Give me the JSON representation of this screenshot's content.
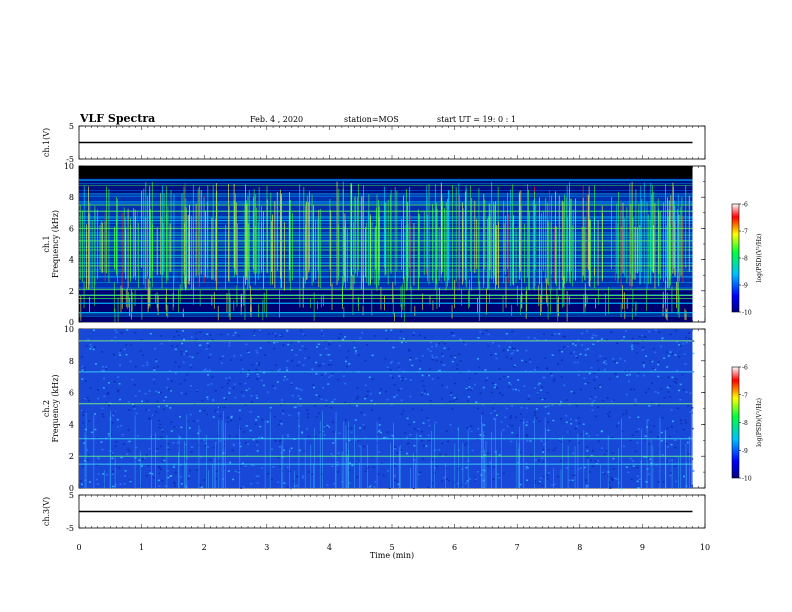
{
  "header": {
    "title": "VLF Spectra",
    "date": "Feb. 4 , 2020",
    "station": "station=MOS",
    "start": "start UT =  19: 0  : 1"
  },
  "chart_data": [
    {
      "type": "line",
      "ylabel": "ch.1(V)",
      "ylim": [
        -5,
        5
      ],
      "yticks": [
        "5",
        "-5"
      ],
      "series": [
        {
          "x": [
            0,
            9.8
          ],
          "values": [
            0,
            0
          ]
        }
      ]
    },
    {
      "type": "heatmap",
      "ylabel": "ch.1\nFrequency (kHz)",
      "xlim": [
        0,
        10
      ],
      "ylim": [
        0,
        10
      ],
      "yticks": [
        0,
        2,
        4,
        6,
        8,
        10
      ],
      "data_extent_min": 9.8,
      "colorbar": {
        "label": "log(PSD)(V²/Hz)",
        "range": [
          -10,
          -6
        ],
        "ticks": [
          -6,
          -7,
          -8,
          -9,
          -10
        ]
      }
    },
    {
      "type": "heatmap",
      "ylabel": "ch.2\nFrequency (kHz)",
      "xlim": [
        0,
        10
      ],
      "ylim": [
        0,
        10
      ],
      "yticks": [
        0,
        2,
        4,
        6,
        8,
        10
      ],
      "data_extent_min": 9.8,
      "colorbar": {
        "label": "log(PSD)(V²/Hz)",
        "range": [
          -10,
          -6
        ],
        "ticks": [
          -6,
          -7,
          -8,
          -9,
          -10
        ]
      }
    },
    {
      "type": "line",
      "ylabel": "ch.3(V)",
      "ylim": [
        -5,
        5
      ],
      "yticks": [
        "5",
        "-5"
      ],
      "xlabel": "Time (min)",
      "xticks": [
        0,
        1,
        2,
        3,
        4,
        5,
        6,
        7,
        8,
        9,
        10
      ],
      "series": [
        {
          "x": [
            0,
            9.8
          ],
          "values": [
            0,
            0
          ]
        }
      ]
    }
  ]
}
